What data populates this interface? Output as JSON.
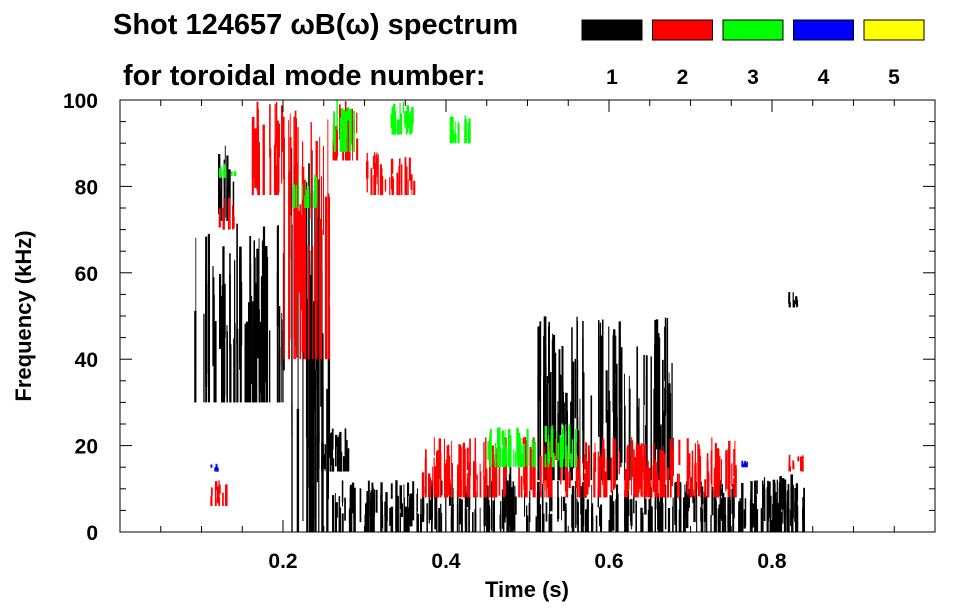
{
  "chart_data": {
    "type": "heatmap",
    "title_line1": "Shot 124657 ωB(ω) spectrum",
    "title_line2": "for toroidal mode number:",
    "xlabel": "Time (s)",
    "ylabel": "Frequency (kHz)",
    "xlim": [
      0.0,
      1.0
    ],
    "ylim": [
      0,
      100
    ],
    "xticks": [
      0.2,
      0.4,
      0.6,
      0.8
    ],
    "xtick_labels": [
      "0.2",
      "0.4",
      "0.6",
      "0.8"
    ],
    "yticks": [
      0,
      20,
      40,
      60,
      80,
      100
    ],
    "ytick_labels": [
      "0",
      "20",
      "40",
      "60",
      "80",
      "100"
    ],
    "grid": false,
    "legend_placement": "top-right",
    "legend": [
      {
        "mode": "1",
        "color": "#000000"
      },
      {
        "mode": "2",
        "color": "#ff0000"
      },
      {
        "mode": "3",
        "color": "#00ff00"
      },
      {
        "mode": "4",
        "color": "#0000ff"
      },
      {
        "mode": "5",
        "color": "#ffff00"
      }
    ],
    "regions": [
      {
        "mode": 1,
        "t": [
          0.09,
          0.2
        ],
        "f": [
          30,
          72
        ]
      },
      {
        "mode": 1,
        "t": [
          0.12,
          0.14
        ],
        "f": [
          72,
          90
        ]
      },
      {
        "mode": 1,
        "t": [
          0.21,
          0.26
        ],
        "f": [
          0,
          90
        ]
      },
      {
        "mode": 1,
        "t": [
          0.24,
          0.28
        ],
        "f": [
          14,
          24
        ]
      },
      {
        "mode": 1,
        "t": [
          0.26,
          0.84
        ],
        "f": [
          0,
          12
        ]
      },
      {
        "mode": 1,
        "t": [
          0.44,
          0.48
        ],
        "f": [
          0,
          16
        ]
      },
      {
        "mode": 1,
        "t": [
          0.51,
          0.68
        ],
        "f": [
          12,
          50
        ]
      },
      {
        "mode": 1,
        "t": [
          0.79,
          0.83
        ],
        "f": [
          0,
          14
        ]
      },
      {
        "mode": 1,
        "t": [
          0.82,
          0.83
        ],
        "f": [
          52,
          56
        ]
      },
      {
        "mode": 2,
        "t": [
          0.12,
          0.14
        ],
        "f": [
          70,
          78
        ]
      },
      {
        "mode": 2,
        "t": [
          0.16,
          0.2
        ],
        "f": [
          78,
          100
        ]
      },
      {
        "mode": 2,
        "t": [
          0.2,
          0.26
        ],
        "f": [
          40,
          100
        ]
      },
      {
        "mode": 2,
        "t": [
          0.26,
          0.29
        ],
        "f": [
          86,
          100
        ]
      },
      {
        "mode": 2,
        "t": [
          0.3,
          0.36
        ],
        "f": [
          78,
          88
        ]
      },
      {
        "mode": 2,
        "t": [
          0.37,
          0.76
        ],
        "f": [
          8,
          22
        ]
      },
      {
        "mode": 2,
        "t": [
          0.11,
          0.13
        ],
        "f": [
          6,
          12
        ]
      },
      {
        "mode": 2,
        "t": [
          0.82,
          0.84
        ],
        "f": [
          14,
          18
        ]
      },
      {
        "mode": 3,
        "t": [
          0.26,
          0.29
        ],
        "f": [
          88,
          100
        ]
      },
      {
        "mode": 3,
        "t": [
          0.33,
          0.36
        ],
        "f": [
          92,
          100
        ]
      },
      {
        "mode": 3,
        "t": [
          0.4,
          0.43
        ],
        "f": [
          90,
          97
        ]
      },
      {
        "mode": 3,
        "t": [
          0.21,
          0.24
        ],
        "f": [
          75,
          83
        ]
      },
      {
        "mode": 3,
        "t": [
          0.45,
          0.56
        ],
        "f": [
          15,
          25
        ]
      },
      {
        "mode": 3,
        "t": [
          0.12,
          0.14
        ],
        "f": [
          82,
          86
        ]
      },
      {
        "mode": 4,
        "t": [
          0.76,
          0.77
        ],
        "f": [
          15,
          17
        ]
      },
      {
        "mode": 4,
        "t": [
          0.11,
          0.12
        ],
        "f": [
          14,
          16
        ]
      }
    ]
  }
}
